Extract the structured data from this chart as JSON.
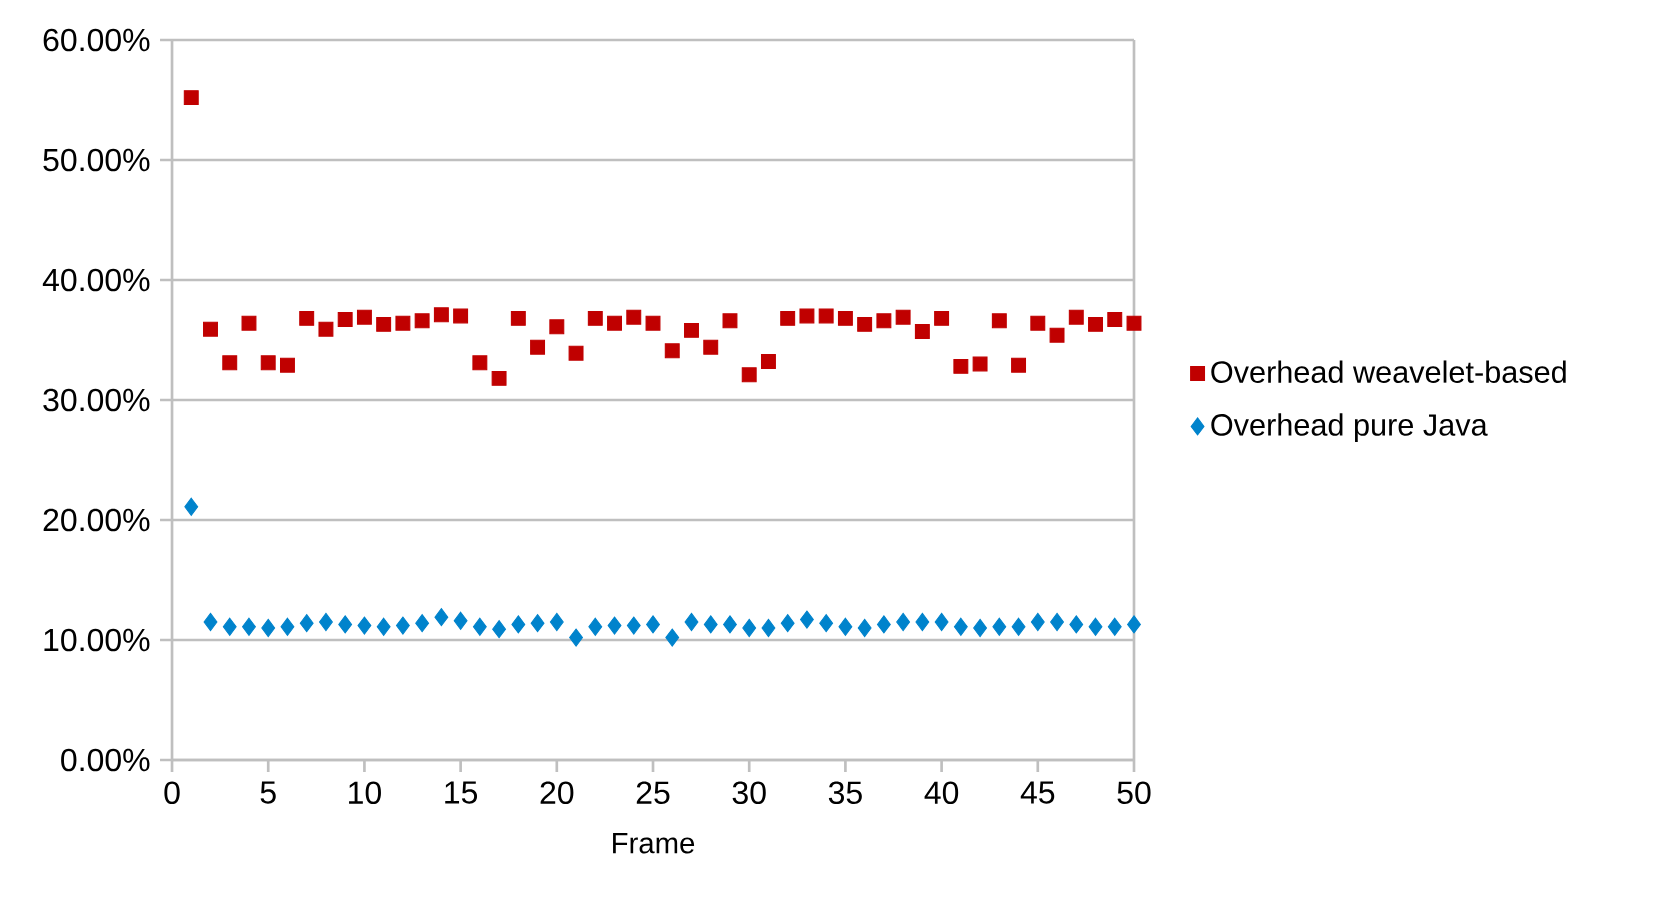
{
  "chart_data": {
    "type": "scatter",
    "xlabel": "Frame",
    "x": [
      1,
      2,
      3,
      4,
      5,
      6,
      7,
      8,
      9,
      10,
      11,
      12,
      13,
      14,
      15,
      16,
      17,
      18,
      19,
      20,
      21,
      22,
      23,
      24,
      25,
      26,
      27,
      28,
      29,
      30,
      31,
      32,
      33,
      34,
      35,
      36,
      37,
      38,
      39,
      40,
      41,
      42,
      43,
      44,
      45,
      46,
      47,
      48,
      49,
      50
    ],
    "series": [
      {
        "name": "Overhead weavelet-based",
        "color": "#c00000",
        "marker": "square",
        "values": [
          55.2,
          35.9,
          33.1,
          36.4,
          33.1,
          32.9,
          36.8,
          35.9,
          36.7,
          36.9,
          36.3,
          36.4,
          36.6,
          37.1,
          37.0,
          33.1,
          31.8,
          36.8,
          34.4,
          36.1,
          33.9,
          36.8,
          36.4,
          36.9,
          36.4,
          34.1,
          35.8,
          34.4,
          36.6,
          32.1,
          33.2,
          36.8,
          37.0,
          37.0,
          36.8,
          36.3,
          36.6,
          36.9,
          35.7,
          36.8,
          32.8,
          33.0,
          36.6,
          32.9,
          36.4,
          35.4,
          36.9,
          36.3,
          36.7,
          36.4
        ]
      },
      {
        "name": "Overhead pure Java",
        "color": "#0083cc",
        "marker": "diamond",
        "values": [
          21.1,
          11.5,
          11.1,
          11.1,
          11.0,
          11.1,
          11.4,
          11.5,
          11.3,
          11.2,
          11.1,
          11.2,
          11.4,
          11.9,
          11.6,
          11.1,
          10.9,
          11.3,
          11.4,
          11.5,
          10.2,
          11.1,
          11.2,
          11.2,
          11.3,
          10.2,
          11.5,
          11.3,
          11.3,
          11.0,
          11.0,
          11.4,
          11.7,
          11.4,
          11.1,
          11.0,
          11.3,
          11.5,
          11.5,
          11.5,
          11.1,
          11.0,
          11.1,
          11.1,
          11.5,
          11.5,
          11.3,
          11.1,
          11.1,
          11.3
        ]
      }
    ],
    "xlim": [
      0,
      50
    ],
    "xticks": [
      0,
      5,
      10,
      15,
      20,
      25,
      30,
      35,
      40,
      45,
      50
    ],
    "ylim": [
      0,
      60
    ],
    "yticks": [
      {
        "value": 0,
        "label": "0.00%"
      },
      {
        "value": 10,
        "label": "10.00%"
      },
      {
        "value": 20,
        "label": "20.00%"
      },
      {
        "value": 30,
        "label": "30.00%"
      },
      {
        "value": 40,
        "label": "40.00%"
      },
      {
        "value": 50,
        "label": "50.00%"
      },
      {
        "value": 60,
        "label": "60.00%"
      }
    ],
    "grid": "y",
    "legend": "right"
  }
}
